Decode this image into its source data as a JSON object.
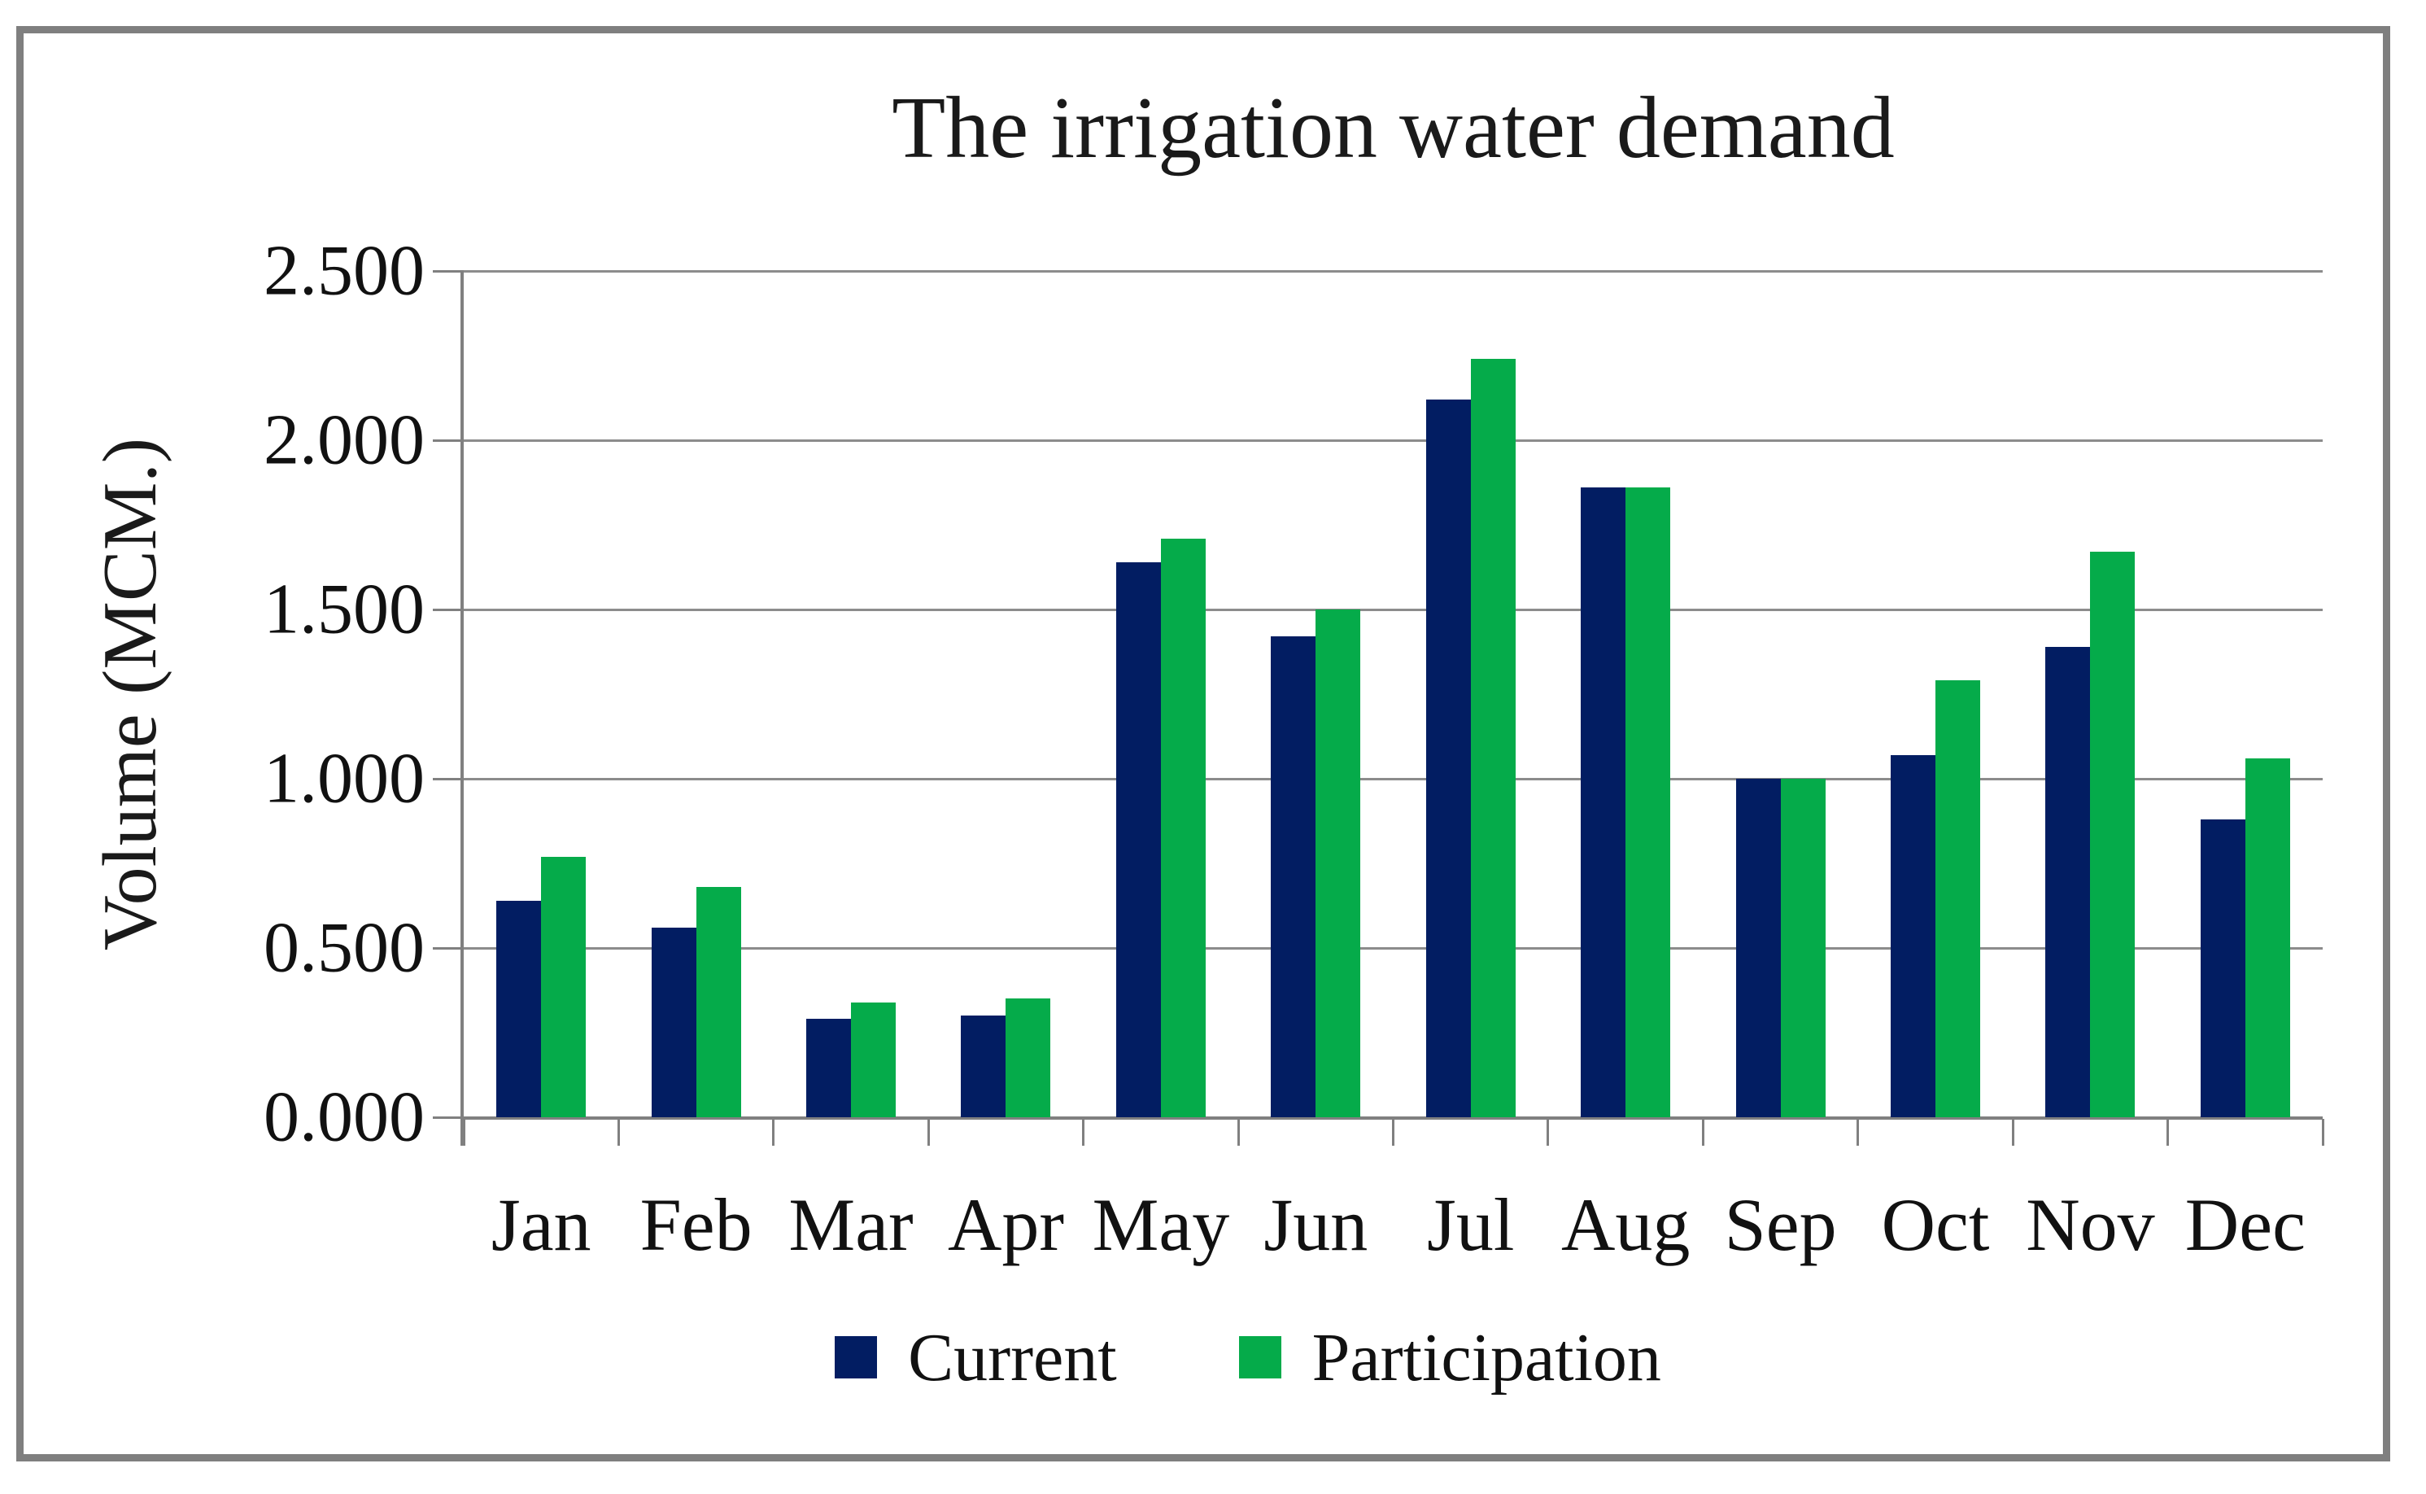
{
  "figure": {
    "background": "#ffffff",
    "border_color": "#7f7f7f"
  },
  "chart_data": {
    "type": "bar",
    "title": "The irrigation water demand",
    "ylabel": "Volume (MCM.)",
    "categories": [
      "Jan",
      "Feb",
      "Mar",
      "Apr",
      "May",
      "Jun",
      "Jul",
      "Aug",
      "Sep",
      "Oct",
      "Nov",
      "Dec"
    ],
    "series": [
      {
        "name": "Current",
        "color": "#021d62",
        "values": [
          0.64,
          0.56,
          0.29,
          0.3,
          1.64,
          1.42,
          2.12,
          1.86,
          1.0,
          1.07,
          1.39,
          0.88
        ]
      },
      {
        "name": "Participation",
        "color": "#05ab4a",
        "values": [
          0.77,
          0.68,
          0.34,
          0.35,
          1.71,
          1.5,
          2.24,
          1.86,
          1.0,
          1.29,
          1.67,
          1.06
        ]
      }
    ],
    "ylim": [
      0,
      2.5
    ],
    "ytick_labels": [
      "2.500",
      "2.000",
      "1.500",
      "1.000",
      "0.500",
      "0.000"
    ],
    "grid": true,
    "gridline_color": "#8c8c8c",
    "axis_color": "#808080",
    "legend_position": "bottom"
  }
}
